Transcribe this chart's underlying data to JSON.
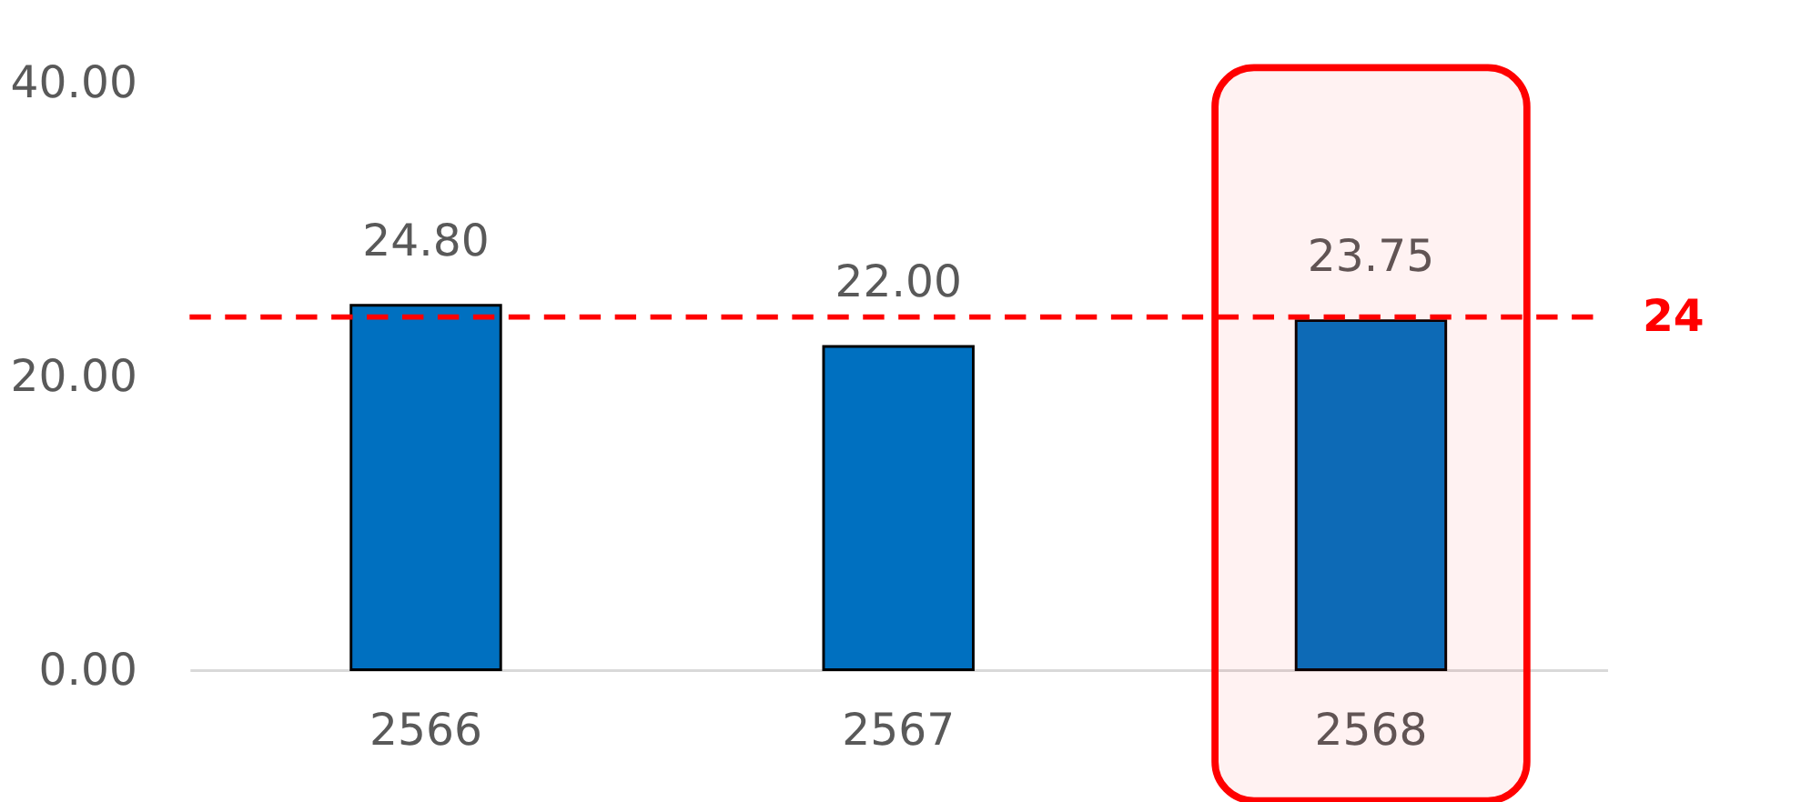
{
  "chart_data": {
    "type": "bar",
    "categories": [
      "2566",
      "2567",
      "2568"
    ],
    "values": [
      24.8,
      22.0,
      23.75
    ],
    "value_labels": [
      "24.80",
      "22.00",
      "23.75"
    ],
    "color": "#0070c0",
    "ylim": [
      0,
      40
    ],
    "yticks": [
      {
        "value": 0,
        "label": "0.00"
      },
      {
        "value": 20,
        "label": "20.00"
      },
      {
        "value": 40,
        "label": "40.00"
      }
    ],
    "grid": false,
    "ref_lines": [
      {
        "axis": "y",
        "value": 24,
        "label": "24",
        "color": "#ff0000",
        "line_style": "dashed"
      }
    ],
    "bands": [
      {
        "axis": "x",
        "from": "2568",
        "to": "2568",
        "color": "#ff0000"
      }
    ]
  }
}
